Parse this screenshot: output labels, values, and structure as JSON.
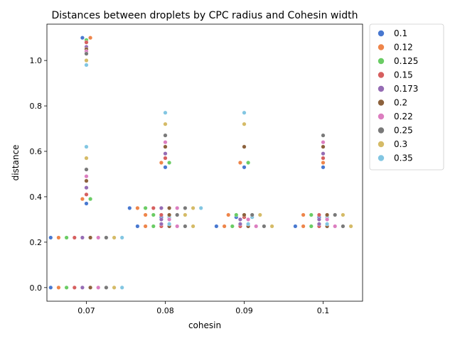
{
  "chart_data": {
    "type": "scatter",
    "subtype": "swarm",
    "title": "Distances between droplets by CPC radius and Cohesin width",
    "xlabel": "cohesin",
    "ylabel": "distance",
    "categories": [
      "0.07",
      "0.08",
      "0.09",
      "0.1"
    ],
    "ylim": [
      -0.06,
      1.16
    ],
    "yticks": [
      "0.0",
      "0.2",
      "0.4",
      "0.6",
      "0.8",
      "1.0"
    ],
    "legend_placement": "outside-top-right",
    "grid": false,
    "series": [
      {
        "name": "0.1",
        "color": "#4878d0",
        "points": [
          [
            0,
            0.0
          ],
          [
            0,
            0.22
          ],
          [
            0,
            0.37
          ],
          [
            0,
            1.1
          ],
          [
            1,
            0.27
          ],
          [
            1,
            0.31
          ],
          [
            1,
            0.53
          ],
          [
            1,
            0.35
          ],
          [
            2,
            0.27
          ],
          [
            2,
            0.31
          ],
          [
            2,
            0.53
          ],
          [
            3,
            0.27
          ],
          [
            3,
            0.31
          ],
          [
            3,
            0.53
          ]
        ]
      },
      {
        "name": "0.12",
        "color": "#ee854a",
        "points": [
          [
            0,
            0.0
          ],
          [
            0,
            0.22
          ],
          [
            0,
            0.39
          ],
          [
            0,
            1.1
          ],
          [
            1,
            0.27
          ],
          [
            1,
            0.32
          ],
          [
            1,
            0.55
          ],
          [
            1,
            0.35
          ],
          [
            2,
            0.27
          ],
          [
            2,
            0.32
          ],
          [
            2,
            0.55
          ],
          [
            3,
            0.27
          ],
          [
            3,
            0.32
          ],
          [
            3,
            0.55
          ]
        ]
      },
      {
        "name": "0.125",
        "color": "#6acc64",
        "points": [
          [
            0,
            0.0
          ],
          [
            0,
            0.22
          ],
          [
            0,
            0.39
          ],
          [
            0,
            1.09
          ],
          [
            1,
            0.27
          ],
          [
            1,
            0.32
          ],
          [
            1,
            0.55
          ],
          [
            1,
            0.35
          ],
          [
            2,
            0.27
          ],
          [
            2,
            0.32
          ],
          [
            2,
            0.55
          ],
          [
            3,
            0.27
          ],
          [
            3,
            0.32
          ]
        ]
      },
      {
        "name": "0.15",
        "color": "#d65f5f",
        "points": [
          [
            0,
            0.0
          ],
          [
            0,
            0.22
          ],
          [
            0,
            0.41
          ],
          [
            0,
            1.08
          ],
          [
            1,
            0.27
          ],
          [
            1,
            0.32
          ],
          [
            1,
            0.57
          ],
          [
            1,
            0.35
          ],
          [
            2,
            0.27
          ],
          [
            2,
            0.31
          ],
          [
            3,
            0.27
          ],
          [
            3,
            0.32
          ],
          [
            3,
            0.57
          ]
        ]
      },
      {
        "name": "0.173",
        "color": "#956cb4",
        "points": [
          [
            0,
            0.0
          ],
          [
            0,
            0.22
          ],
          [
            0,
            0.44
          ],
          [
            0,
            1.06
          ],
          [
            1,
            0.28
          ],
          [
            1,
            0.3
          ],
          [
            1,
            0.59
          ],
          [
            1,
            0.35
          ],
          [
            2,
            0.28
          ],
          [
            2,
            0.3
          ],
          [
            3,
            0.28
          ],
          [
            3,
            0.3
          ],
          [
            3,
            0.59
          ]
        ]
      },
      {
        "name": "0.2",
        "color": "#8c613c",
        "points": [
          [
            0,
            0.0
          ],
          [
            0,
            0.22
          ],
          [
            0,
            0.47
          ],
          [
            0,
            1.05
          ],
          [
            1,
            0.27
          ],
          [
            1,
            0.32
          ],
          [
            1,
            0.62
          ],
          [
            1,
            0.35
          ],
          [
            2,
            0.27
          ],
          [
            2,
            0.32
          ],
          [
            2,
            0.62
          ],
          [
            3,
            0.27
          ],
          [
            3,
            0.32
          ],
          [
            3,
            0.62
          ]
        ]
      },
      {
        "name": "0.22",
        "color": "#dc7ec0",
        "points": [
          [
            0,
            0.0
          ],
          [
            0,
            0.22
          ],
          [
            0,
            0.49
          ],
          [
            0,
            1.04
          ],
          [
            1,
            0.27
          ],
          [
            1,
            0.3
          ],
          [
            1,
            0.64
          ],
          [
            1,
            0.35
          ],
          [
            2,
            0.27
          ],
          [
            2,
            0.3
          ],
          [
            3,
            0.27
          ],
          [
            3,
            0.3
          ],
          [
            3,
            0.64
          ]
        ]
      },
      {
        "name": "0.25",
        "color": "#797979",
        "points": [
          [
            0,
            0.0
          ],
          [
            0,
            0.22
          ],
          [
            0,
            0.52
          ],
          [
            0,
            1.03
          ],
          [
            1,
            0.27
          ],
          [
            1,
            0.32
          ],
          [
            1,
            0.67
          ],
          [
            1,
            0.35
          ],
          [
            2,
            0.27
          ],
          [
            2,
            0.32
          ],
          [
            3,
            0.27
          ],
          [
            3,
            0.32
          ],
          [
            3,
            0.67
          ]
        ]
      },
      {
        "name": "0.3",
        "color": "#d5bb67",
        "points": [
          [
            0,
            0.0
          ],
          [
            0,
            0.22
          ],
          [
            0,
            0.57
          ],
          [
            0,
            1.0
          ],
          [
            1,
            0.27
          ],
          [
            1,
            0.32
          ],
          [
            1,
            0.72
          ],
          [
            1,
            0.35
          ],
          [
            2,
            0.27
          ],
          [
            2,
            0.32
          ],
          [
            2,
            0.72
          ],
          [
            3,
            0.27
          ],
          [
            3,
            0.32
          ]
        ]
      },
      {
        "name": "0.35",
        "color": "#82c6e2",
        "points": [
          [
            0,
            0.0
          ],
          [
            0,
            0.22
          ],
          [
            0,
            0.62
          ],
          [
            0,
            0.98
          ],
          [
            1,
            0.28
          ],
          [
            1,
            0.31
          ],
          [
            1,
            0.77
          ],
          [
            1,
            0.35
          ],
          [
            2,
            0.28
          ],
          [
            2,
            0.31
          ],
          [
            2,
            0.77
          ],
          [
            3,
            0.28
          ],
          [
            3,
            0.31
          ]
        ]
      }
    ]
  }
}
